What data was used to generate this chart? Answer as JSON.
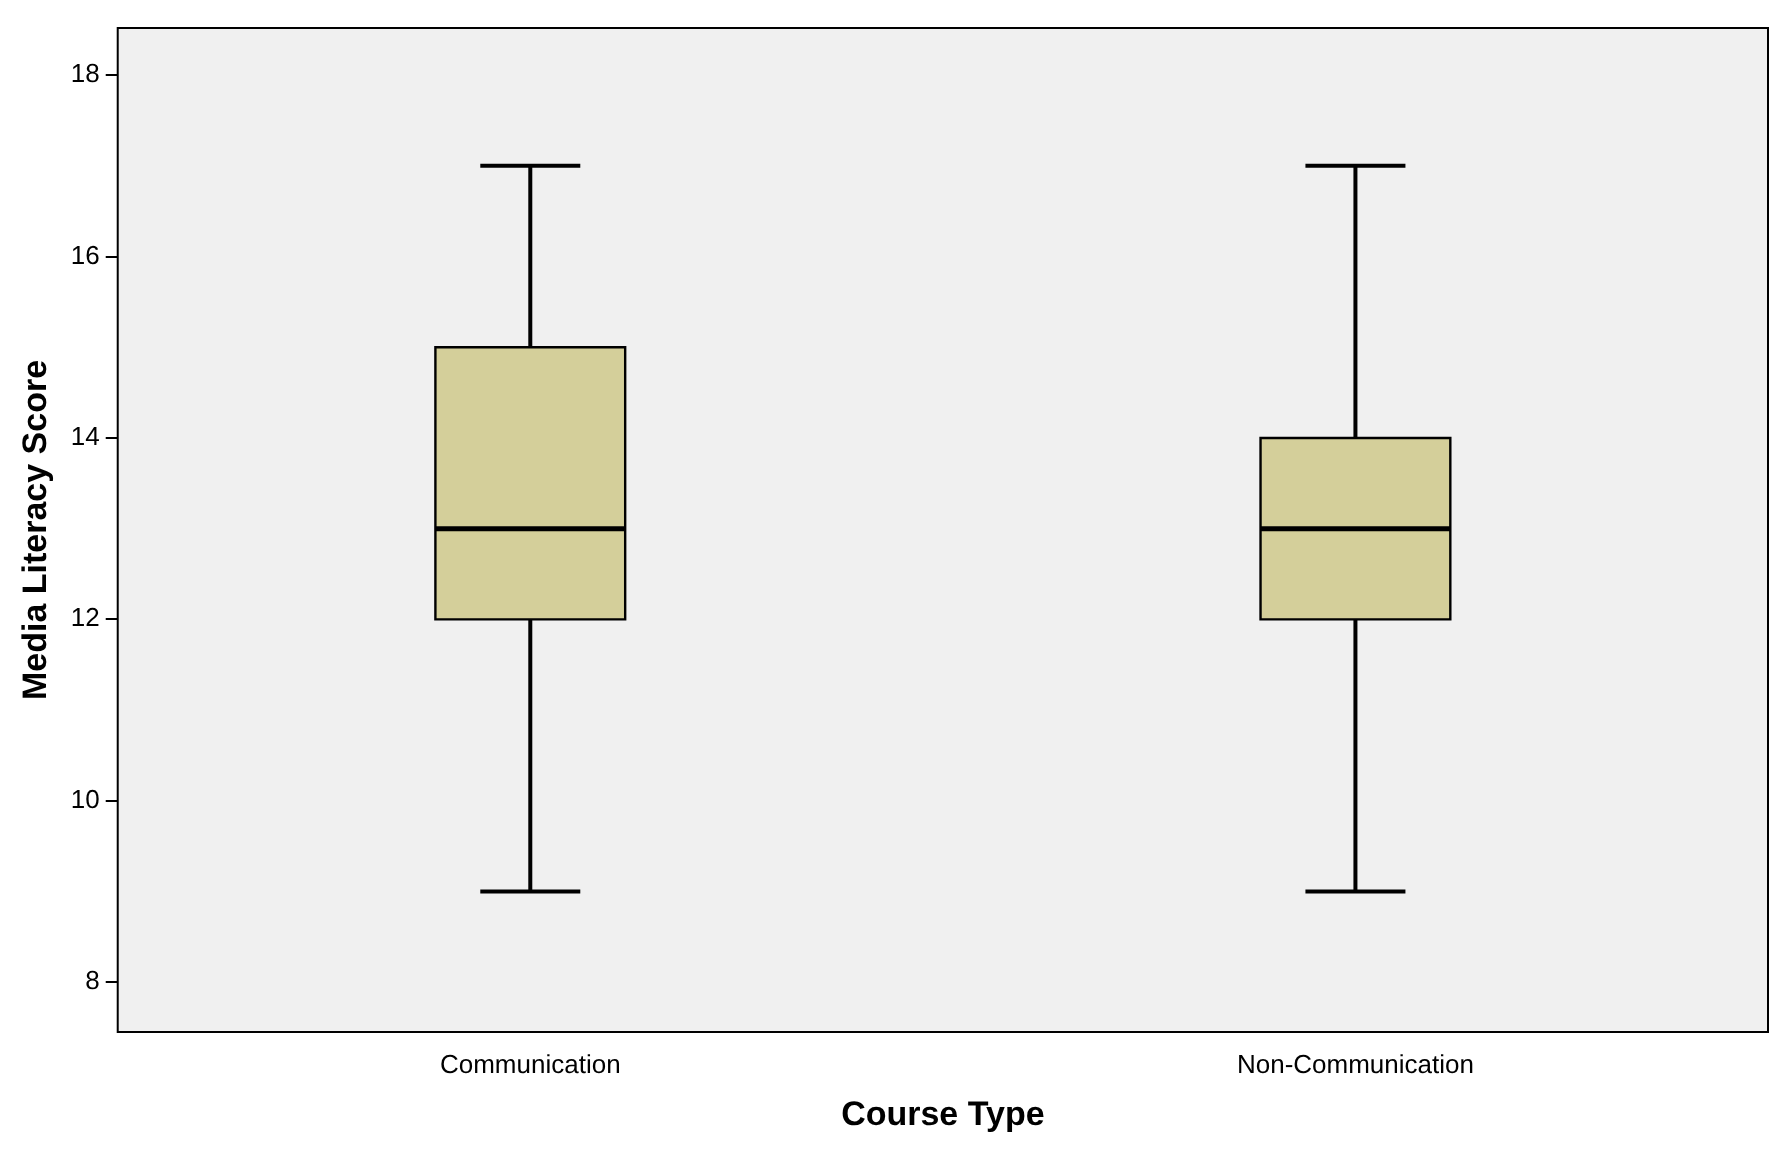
{
  "chart_data": {
    "type": "box",
    "xlabel": "Course Type",
    "ylabel": "Media Literacy Score",
    "categories": [
      "Communication",
      "Non-Communication"
    ],
    "boxes": [
      {
        "low": 9,
        "q1": 12,
        "median": 13,
        "q3": 15,
        "high": 17
      },
      {
        "low": 9,
        "q1": 12,
        "median": 13,
        "q3": 14,
        "high": 17
      }
    ],
    "color": "#d4cf9a",
    "ylim": [
      7.45,
      18.52
    ],
    "yticks": [
      8,
      10,
      12,
      14,
      16,
      18
    ],
    "grid": false,
    "legend": false
  }
}
